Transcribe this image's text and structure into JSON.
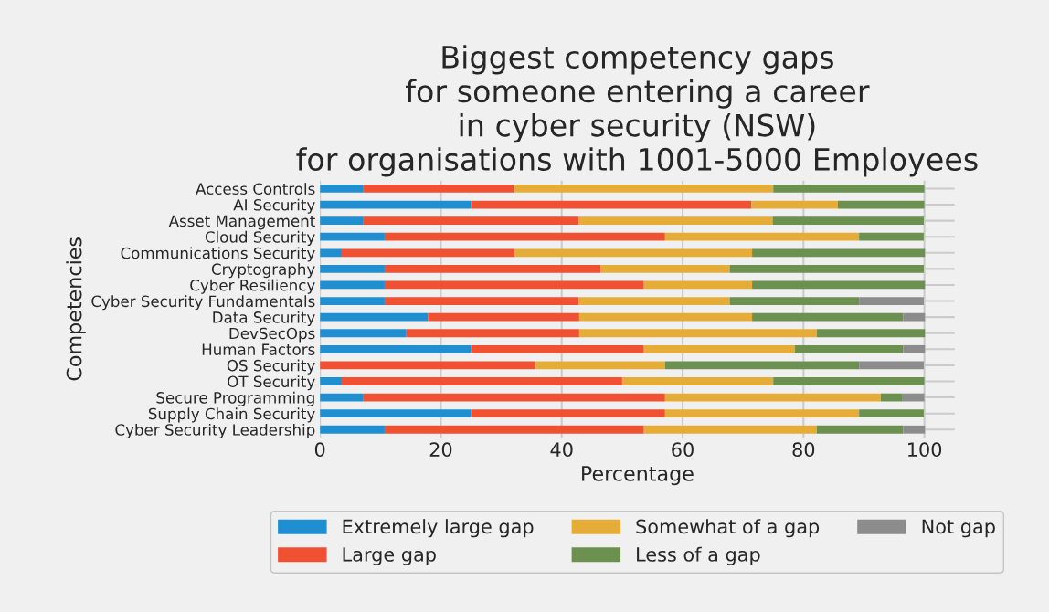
{
  "chart_data": {
    "type": "bar",
    "orientation": "horizontal",
    "stacked": true,
    "title": "Biggest competency gaps\nfor someone entering a career\nin cyber security (NSW)\nfor organisations with 1001-5000 Employees",
    "xlabel": "Percentage",
    "ylabel": "Competencies",
    "categories": [
      "Access Controls",
      "AI Security",
      "Asset Management",
      "Cloud Security",
      "Communications Security",
      "Cryptography",
      "Cyber Resiliency",
      "Cyber Security Fundamentals",
      "Data Security",
      "DevSecOps",
      "Human Factors",
      "OS Security",
      "OT Security",
      "Secure Programming",
      "Supply Chain Security",
      "Cyber Security Leadership"
    ],
    "series": [
      {
        "name": "Extremely large gap",
        "color": "#1f8fd2",
        "values": [
          7.1,
          25,
          7.1,
          10.7,
          3.6,
          10.7,
          10.7,
          10.7,
          17.9,
          14.3,
          25,
          0,
          3.6,
          7.1,
          25,
          10.7
        ]
      },
      {
        "name": "Large gap",
        "color": "#f05133",
        "values": [
          25,
          46.4,
          35.7,
          46.4,
          28.6,
          35.7,
          42.9,
          32.1,
          25,
          28.6,
          28.6,
          35.7,
          46.4,
          50,
          32.1,
          42.9
        ]
      },
      {
        "name": "Somewhat of a gap",
        "color": "#e5ad38",
        "values": [
          42.9,
          14.3,
          32.1,
          32.1,
          39.3,
          21.4,
          17.9,
          25,
          28.6,
          39.3,
          25,
          21.4,
          25,
          35.7,
          32.1,
          28.6
        ]
      },
      {
        "name": "Less of a gap",
        "color": "#6b904f",
        "values": [
          25,
          14.3,
          25,
          10.7,
          28.6,
          32.1,
          28.6,
          21.4,
          25,
          17.9,
          17.9,
          32.1,
          25,
          3.6,
          10.7,
          14.3
        ]
      },
      {
        "name": "Not gap",
        "color": "#8c8c8c",
        "values": [
          0,
          0,
          0,
          0,
          0,
          0,
          0,
          10.7,
          3.6,
          0,
          3.6,
          10.7,
          0,
          3.6,
          0,
          3.6
        ]
      }
    ],
    "xlim": [
      0,
      105
    ],
    "xticks": [
      0,
      20,
      40,
      60,
      80,
      100
    ],
    "grid": true,
    "legend": "bottom"
  }
}
